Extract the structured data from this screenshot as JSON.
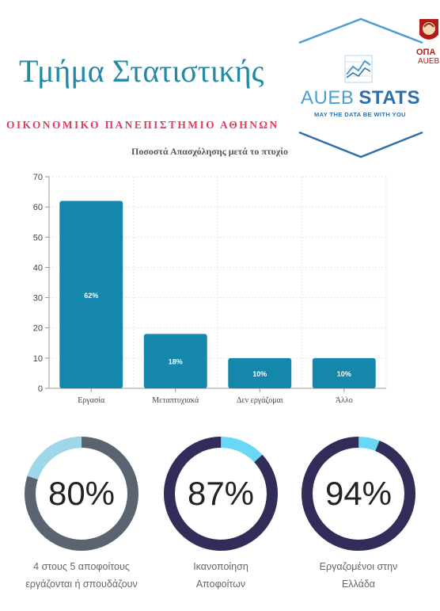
{
  "header": {
    "title": "Τμήμα Στατιστικής",
    "university": "ΟΙΚΟΝΟΜΙΚΟ ΠΑΝΕΠΙΣΤΗΜΙΟ ΑΘΗΝΩΝ"
  },
  "logo": {
    "aueb": "AUEB",
    "stats": "STATS",
    "tagline": "MAY THE DATA BE WITH YOU",
    "opa": "ΟΠΑ",
    "aueb_small": "AUEB"
  },
  "colors": {
    "bar": "#1487ab",
    "title": "#2389a6",
    "university": "#e8385e",
    "ring1_track": "#5a6370",
    "ring1_fill": "#9dd7e8",
    "ring_dark": "#312d58",
    "ring_light": "#6ad8f5"
  },
  "chart_data": {
    "type": "bar",
    "title": "Ποσοστά Απασχόλησης μετά το πτυχίο",
    "categories": [
      "Εργασία",
      "Μεταπτυχιακά",
      "Δεν εργάζομαι",
      "Άλλο"
    ],
    "values": [
      62,
      18,
      10,
      10
    ],
    "data_labels": [
      "62%",
      "18%",
      "10%",
      "10%"
    ],
    "ylim": [
      0,
      70
    ],
    "yticks": [
      0,
      10,
      20,
      30,
      40,
      50,
      60,
      70
    ],
    "grid": true,
    "xlabel": "",
    "ylabel": ""
  },
  "stats": [
    {
      "percent_text": "80%",
      "value": 0.8,
      "label_line1": "4 στους 5 αποφοίτους",
      "label_line2": "εργάζονται ή σπουδάζουν"
    },
    {
      "percent_text": "87%",
      "value": 0.87,
      "label_line1": "Ικανοποίηση",
      "label_line2": "Αποφοίτων"
    },
    {
      "percent_text": "94%",
      "value": 0.94,
      "label_line1": "Εργαζομένοι στην",
      "label_line2": "Ελλάδα"
    }
  ]
}
